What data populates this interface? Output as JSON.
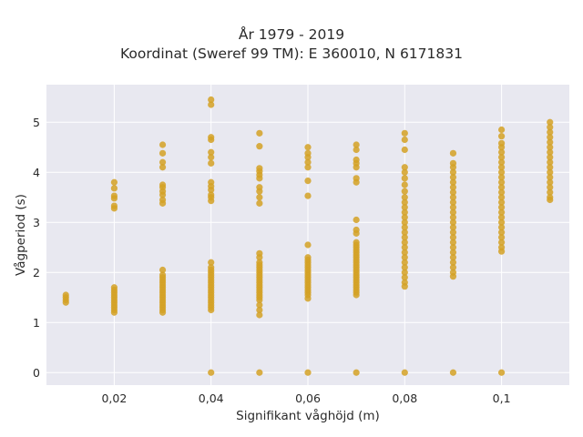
{
  "chart_data": {
    "type": "scatter",
    "title_line1": "År 1979 - 2019",
    "title_line2": "Koordinat (Sweref 99 TM): E 360010, N 6171831",
    "xlabel": "Signifikant våghöjd (m)",
    "ylabel": "Vågperiod (s)",
    "xlim": [
      0.006,
      0.114
    ],
    "ylim": [
      -0.25,
      5.75
    ],
    "grid": true,
    "x_ticks": [
      0.02,
      0.04,
      0.06,
      0.08,
      0.1
    ],
    "x_tick_labels": [
      "0,02",
      "0,04",
      "0,06",
      "0,08",
      "0,1"
    ],
    "y_ticks": [
      0,
      1,
      2,
      3,
      4,
      5
    ],
    "y_tick_labels": [
      "0",
      "1",
      "2",
      "3",
      "4",
      "5"
    ],
    "marker_color": "#d4a124",
    "plot_background": "#e8e8f0",
    "points": [
      {
        "x": 0.01,
        "y": [
          1.4,
          1.45,
          1.5,
          1.55
        ]
      },
      {
        "x": 0.02,
        "y": [
          1.2,
          1.25,
          1.3,
          1.35,
          1.4,
          1.45,
          1.5,
          1.55,
          1.6,
          1.65,
          1.7,
          3.28,
          3.33,
          3.48,
          3.53,
          3.68,
          3.8
        ]
      },
      {
        "x": 0.03,
        "y": [
          1.2,
          1.25,
          1.3,
          1.35,
          1.4,
          1.45,
          1.5,
          1.55,
          1.6,
          1.65,
          1.7,
          1.75,
          1.8,
          1.85,
          1.9,
          1.95,
          2.05,
          3.38,
          3.45,
          3.55,
          3.62,
          3.7,
          3.75,
          4.1,
          4.2,
          4.38,
          4.55
        ]
      },
      {
        "x": 0.04,
        "y": [
          0,
          1.25,
          1.3,
          1.35,
          1.4,
          1.45,
          1.5,
          1.55,
          1.6,
          1.65,
          1.7,
          1.75,
          1.8,
          1.85,
          1.9,
          1.95,
          2.0,
          2.05,
          2.1,
          2.2,
          3.43,
          3.5,
          3.55,
          3.65,
          3.72,
          3.8,
          4.18,
          4.3,
          4.4,
          4.65,
          4.7,
          5.35,
          5.45
        ]
      },
      {
        "x": 0.05,
        "y": [
          0,
          1.15,
          1.25,
          1.35,
          1.45,
          1.5,
          1.55,
          1.6,
          1.65,
          1.7,
          1.75,
          1.8,
          1.85,
          1.9,
          1.95,
          2.0,
          2.05,
          2.1,
          2.15,
          2.2,
          2.3,
          2.38,
          3.38,
          3.5,
          3.62,
          3.7,
          3.88,
          3.95,
          4.02,
          4.08,
          4.52,
          4.78
        ]
      },
      {
        "x": 0.06,
        "y": [
          0,
          1.48,
          1.55,
          1.6,
          1.65,
          1.7,
          1.75,
          1.8,
          1.85,
          1.9,
          1.95,
          2.0,
          2.05,
          2.1,
          2.15,
          2.2,
          2.25,
          2.3,
          2.55,
          3.53,
          3.83,
          4.1,
          4.2,
          4.3,
          4.38,
          4.5
        ]
      },
      {
        "x": 0.07,
        "y": [
          0,
          1.55,
          1.6,
          1.65,
          1.7,
          1.75,
          1.8,
          1.85,
          1.9,
          1.95,
          2.0,
          2.05,
          2.1,
          2.15,
          2.2,
          2.25,
          2.3,
          2.35,
          2.4,
          2.45,
          2.5,
          2.55,
          2.6,
          2.78,
          2.85,
          3.05,
          3.8,
          3.88,
          4.1,
          4.18,
          4.25,
          4.45,
          4.55
        ]
      },
      {
        "x": 0.08,
        "y": [
          0,
          1.72,
          1.8,
          1.9,
          2.0,
          2.1,
          2.2,
          2.3,
          2.4,
          2.5,
          2.6,
          2.7,
          2.8,
          2.9,
          3.0,
          3.1,
          3.2,
          3.3,
          3.4,
          3.5,
          3.62,
          3.75,
          3.88,
          4.0,
          4.1,
          4.45,
          4.65,
          4.78
        ]
      },
      {
        "x": 0.09,
        "y": [
          0,
          1.92,
          2.0,
          2.1,
          2.2,
          2.3,
          2.4,
          2.5,
          2.6,
          2.7,
          2.8,
          2.9,
          3.0,
          3.1,
          3.2,
          3.3,
          3.4,
          3.5,
          3.6,
          3.7,
          3.8,
          3.9,
          4.0,
          4.1,
          4.18,
          4.38
        ]
      },
      {
        "x": 0.1,
        "y": [
          0,
          2.42,
          2.5,
          2.6,
          2.7,
          2.8,
          2.9,
          3.0,
          3.1,
          3.2,
          3.3,
          3.4,
          3.5,
          3.6,
          3.7,
          3.8,
          3.9,
          4.0,
          4.1,
          4.2,
          4.3,
          4.4,
          4.5,
          4.58,
          4.72,
          4.85
        ]
      },
      {
        "x": 0.11,
        "y": [
          3.45,
          3.5,
          3.6,
          3.7,
          3.8,
          3.9,
          4.0,
          4.1,
          4.2,
          4.3,
          4.4,
          4.5,
          4.6,
          4.7,
          4.8,
          4.9,
          5.0
        ]
      }
    ]
  }
}
